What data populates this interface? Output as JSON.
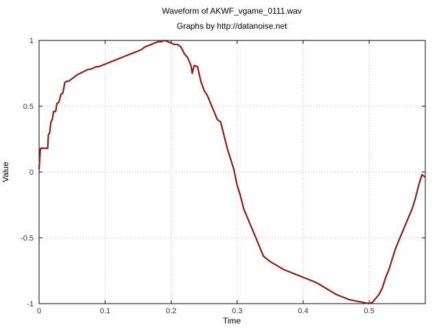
{
  "chart_data": {
    "type": "line",
    "title": "Waveform of AKWF_vgame_0111.wav",
    "subtitle": "Graphs by http://datanoise.net",
    "xlabel": "Time",
    "ylabel": "Value",
    "xlim": [
      0,
      0.585
    ],
    "ylim": [
      -1,
      1
    ],
    "grid": true,
    "xticks": [
      0,
      0.1,
      0.2,
      0.3,
      0.4,
      0.5
    ],
    "xtick_labels": [
      "0",
      "0.1",
      "0.2",
      "0.3",
      "0.4",
      "0.5"
    ],
    "yticks": [
      1,
      0.5,
      0,
      -0.5,
      -1
    ],
    "ytick_labels": [
      "1",
      "0.5",
      "0",
      "-0.5",
      "-1"
    ],
    "line_color": "#8b1a10",
    "series": [
      {
        "x": [
          0,
          0.002,
          0.013,
          0.014,
          0.016,
          0.018,
          0.02,
          0.022,
          0.025,
          0.027,
          0.03,
          0.033,
          0.036,
          0.039,
          0.042,
          0.045,
          0.05,
          0.058,
          0.062,
          0.066,
          0.07,
          0.074,
          0.078,
          0.082,
          0.086,
          0.09,
          0.095,
          0.1,
          0.105,
          0.11,
          0.115,
          0.12,
          0.125,
          0.13,
          0.135,
          0.14,
          0.145,
          0.15,
          0.155,
          0.16,
          0.165,
          0.17,
          0.175,
          0.18,
          0.185,
          0.19,
          0.195,
          0.2,
          0.205,
          0.21,
          0.215,
          0.22,
          0.225,
          0.23,
          0.232,
          0.235,
          0.24,
          0.245,
          0.25,
          0.255,
          0.26,
          0.265,
          0.27,
          0.275,
          0.28,
          0.285,
          0.29,
          0.295,
          0.3,
          0.305,
          0.31,
          0.315,
          0.32,
          0.325,
          0.33,
          0.335,
          0.34,
          0.35,
          0.36,
          0.37,
          0.38,
          0.39,
          0.4,
          0.41,
          0.42,
          0.43,
          0.44,
          0.45,
          0.46,
          0.47,
          0.48,
          0.49,
          0.5,
          0.505,
          0.51,
          0.515,
          0.52,
          0.525,
          0.53,
          0.535,
          0.54,
          0.545,
          0.55,
          0.555,
          0.56,
          0.565,
          0.57,
          0.575,
          0.578,
          0.58,
          0.585
        ],
        "y": [
          0.02,
          0.18,
          0.18,
          0.28,
          0.3,
          0.38,
          0.4,
          0.46,
          0.46,
          0.52,
          0.53,
          0.59,
          0.6,
          0.68,
          0.69,
          0.69,
          0.71,
          0.74,
          0.75,
          0.76,
          0.77,
          0.78,
          0.78,
          0.79,
          0.8,
          0.8,
          0.81,
          0.82,
          0.83,
          0.84,
          0.85,
          0.86,
          0.87,
          0.88,
          0.89,
          0.9,
          0.91,
          0.92,
          0.93,
          0.95,
          0.96,
          0.97,
          0.98,
          0.99,
          0.99,
          1.0,
          0.99,
          0.98,
          0.97,
          0.97,
          0.95,
          0.9,
          0.87,
          0.81,
          0.75,
          0.81,
          0.8,
          0.69,
          0.62,
          0.58,
          0.52,
          0.46,
          0.4,
          0.38,
          0.28,
          0.18,
          0.1,
          0.02,
          -0.1,
          -0.18,
          -0.28,
          -0.34,
          -0.4,
          -0.46,
          -0.52,
          -0.58,
          -0.64,
          -0.68,
          -0.71,
          -0.74,
          -0.76,
          -0.78,
          -0.8,
          -0.82,
          -0.84,
          -0.87,
          -0.9,
          -0.93,
          -0.95,
          -0.97,
          -0.98,
          -0.99,
          -1.0,
          -0.99,
          -0.96,
          -0.93,
          -0.88,
          -0.8,
          -0.74,
          -0.66,
          -0.58,
          -0.52,
          -0.46,
          -0.4,
          -0.34,
          -0.28,
          -0.2,
          -0.1,
          -0.05,
          -0.02,
          -0.04
        ]
      }
    ]
  }
}
